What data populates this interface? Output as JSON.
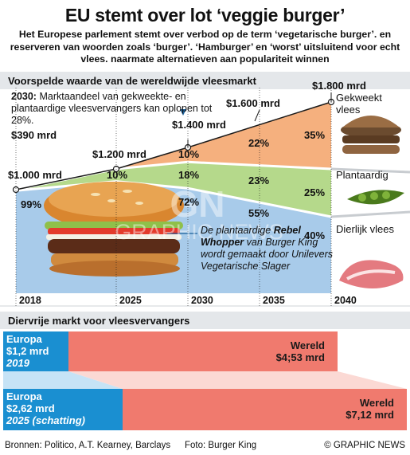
{
  "title": "EU stemt over lot ‘veggie burger’",
  "subtitle": "Het Europese parlement stemt over verbod op de term ‘vegetarische burger’. en reserveren van woorden zoals ‘burger’. ‘Hamburger’ en ‘worst’ uitsluitend voor echt vlees. naarmate alternatieven aan populariteit winnen",
  "section1_title": "Voorspelde waarde van de wereldwijde vleesmarkt",
  "note": {
    "year": "2030:",
    "text": "Marktaandeel van gekweekte- en plantaardige vleesvervangers kan oplopen tot 28%."
  },
  "caption": {
    "prefix": "De plantaardige",
    "bold": "Rebel Whopper",
    "suffix": "van Burger King wordt gemaakt door Unilevers Vegetarische Slager"
  },
  "legend": {
    "cultured": "Gekweekt vlees",
    "plant": "Plantaardig",
    "animal": "Dierlijk vlees"
  },
  "chart_data": [
    {
      "type": "area",
      "title": "Voorspelde waarde van de wereldwijde vleesmarkt",
      "x": [
        2018,
        2025,
        2030,
        2040
      ],
      "x_ticks": [
        "2018",
        "2025",
        "2030",
        "2035",
        "2040"
      ],
      "total_labels": [
        "$1.000 mrd",
        "$1.200 mrd",
        "$1.400 mrd",
        "$1.800 mrd"
      ],
      "extra_labels": [
        {
          "x": 2015,
          "label": "$390 mrd"
        },
        {
          "x": 2035,
          "label": "$1.600 mrd"
        }
      ],
      "totals": [
        1000,
        1200,
        1400,
        1800
      ],
      "series": [
        {
          "name": "Gekweekt vlees",
          "shares": [
            0,
            0,
            10,
            35
          ],
          "labels": [
            "",
            "",
            "10%",
            "35%"
          ],
          "extra": {
            "x": 2035,
            "label": "22%"
          },
          "color": "#f5b07e"
        },
        {
          "name": "Plantaardig",
          "shares": [
            1,
            10,
            18,
            25
          ],
          "labels": [
            "",
            "10%",
            "18%",
            "25%"
          ],
          "extra": {
            "x": 2035,
            "label": "23%"
          },
          "color": "#b5d98b"
        },
        {
          "name": "Dierlijk vlees",
          "shares": [
            99,
            90,
            72,
            40
          ],
          "labels": [
            "99%",
            "",
            "72%",
            "40%"
          ],
          "extra": {
            "x": 2035,
            "label": "55%"
          },
          "color": "#a8cbea"
        }
      ]
    },
    {
      "type": "bar",
      "title": "Diervrije markt voor vleesvervangers",
      "bars": [
        {
          "year": "2019",
          "europa_label": "Europa",
          "europa_value": "$1,2 mrd",
          "europa_num": 1.2,
          "world_label": "Wereld",
          "world_value": "$4;53 mrd",
          "world_num": 4.53
        },
        {
          "year": "2025 (schatting)",
          "europa_label": "Europa",
          "europa_value": "$2,62 mrd",
          "europa_num": 2.62,
          "world_label": "Wereld",
          "world_value": "$7,12 mrd",
          "world_num": 7.12
        }
      ]
    }
  ],
  "footer": {
    "sources": "Bronnen: Politico, A.T. Kearney, Barclays",
    "photo": "Foto: Burger King",
    "credit": "© GRAPHIC NEWS"
  },
  "colors": {
    "cultured": "#f5b07e",
    "plant": "#b5d98b",
    "animal": "#a8cbea",
    "europa": "#1a8fd1",
    "world": "#f07a6e",
    "header": "#e4e7ea"
  }
}
